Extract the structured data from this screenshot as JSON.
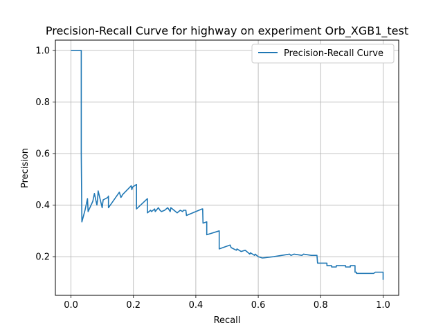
{
  "chart_data": {
    "type": "line",
    "title": "Precision-Recall Curve for highway on experiment Orb_XGB1_test",
    "xlabel": "Recall",
    "ylabel": "Precision",
    "xlim": [
      -0.05,
      1.05
    ],
    "ylim": [
      0.05,
      1.04
    ],
    "x_ticks": [
      0.0,
      0.2,
      0.4,
      0.6,
      0.8,
      1.0
    ],
    "x_tick_labels": [
      "0.0",
      "0.2",
      "0.4",
      "0.6",
      "0.8",
      "1.0"
    ],
    "y_ticks": [
      0.2,
      0.4,
      0.6,
      0.8,
      1.0
    ],
    "y_tick_labels": [
      "0.2",
      "0.4",
      "0.6",
      "0.8",
      "1.0"
    ],
    "grid": true,
    "legend": {
      "position": "top-right",
      "entries": [
        "Precision-Recall Curve"
      ]
    },
    "series": [
      {
        "name": "Precision-Recall Curve",
        "color": "#1f77b4",
        "x": [
          0.0,
          0.033,
          0.033,
          0.035,
          0.045,
          0.053,
          0.055,
          0.07,
          0.075,
          0.083,
          0.085,
          0.087,
          0.1,
          0.103,
          0.118,
          0.12,
          0.12,
          0.155,
          0.16,
          0.163,
          0.165,
          0.193,
          0.195,
          0.197,
          0.21,
          0.21,
          0.245,
          0.245,
          0.255,
          0.258,
          0.268,
          0.27,
          0.28,
          0.285,
          0.29,
          0.3,
          0.31,
          0.318,
          0.32,
          0.34,
          0.35,
          0.358,
          0.36,
          0.368,
          0.37,
          0.42,
          0.422,
          0.423,
          0.423,
          0.435,
          0.435,
          0.475,
          0.475,
          0.51,
          0.513,
          0.53,
          0.532,
          0.545,
          0.558,
          0.573,
          0.575,
          0.588,
          0.59,
          0.6,
          0.6,
          0.613,
          0.613,
          0.65,
          0.7,
          0.7,
          0.705,
          0.705,
          0.715,
          0.715,
          0.74,
          0.74,
          0.745,
          0.745,
          0.77,
          0.77,
          0.788,
          0.79,
          0.79,
          0.82,
          0.82,
          0.835,
          0.835,
          0.85,
          0.85,
          0.88,
          0.88,
          0.895,
          0.895,
          0.91,
          0.91,
          0.915,
          0.915,
          0.93,
          0.93,
          0.97,
          0.97,
          0.975,
          0.98,
          0.99,
          1.0,
          1.0,
          1.0
        ],
        "y": [
          1.0,
          1.0,
          0.6,
          0.335,
          0.38,
          0.425,
          0.375,
          0.415,
          0.445,
          0.4,
          0.42,
          0.455,
          0.39,
          0.42,
          0.43,
          0.435,
          0.39,
          0.45,
          0.43,
          0.435,
          0.44,
          0.475,
          0.46,
          0.47,
          0.48,
          0.385,
          0.425,
          0.37,
          0.38,
          0.375,
          0.385,
          0.375,
          0.39,
          0.38,
          0.375,
          0.38,
          0.39,
          0.375,
          0.39,
          0.37,
          0.38,
          0.375,
          0.38,
          0.38,
          0.36,
          0.385,
          0.385,
          0.33,
          0.33,
          0.335,
          0.285,
          0.3,
          0.23,
          0.245,
          0.235,
          0.225,
          0.23,
          0.22,
          0.225,
          0.21,
          0.215,
          0.205,
          0.21,
          0.2,
          0.2,
          0.195,
          0.195,
          0.2,
          0.21,
          0.21,
          0.205,
          0.205,
          0.21,
          0.21,
          0.205,
          0.205,
          0.21,
          0.21,
          0.205,
          0.205,
          0.205,
          0.175,
          0.175,
          0.175,
          0.165,
          0.165,
          0.16,
          0.16,
          0.165,
          0.165,
          0.16,
          0.16,
          0.165,
          0.165,
          0.14,
          0.14,
          0.135,
          0.135,
          0.135,
          0.135,
          0.135,
          0.14,
          0.14,
          0.14,
          0.14,
          0.14,
          0.11
        ]
      }
    ]
  }
}
